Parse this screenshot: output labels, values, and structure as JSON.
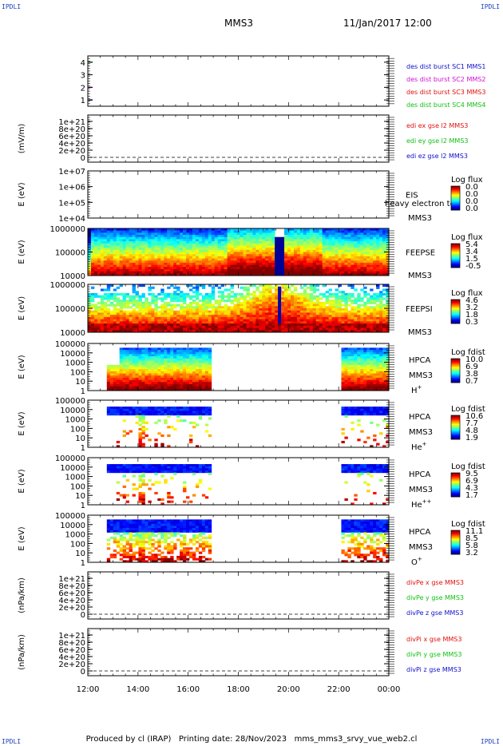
{
  "header": {
    "corner_left_top": "IPDLI",
    "corner_right_top": "IPDLI",
    "corner_left_bottom": "IPDLI",
    "corner_right_bottom": "IPDLI",
    "title": "MMS3",
    "datetime": "11/Jan/2017 12:00"
  },
  "footer": {
    "text": "Produced by cl (IRAP)   Printing date: 28/Nov/2023   mms_mms3_srvy_vue_web2.cl"
  },
  "colors": {
    "blue": "#1010cc",
    "green": "#10c010",
    "red": "#e01010",
    "magenta": "#d010d0"
  },
  "chart_data": [
    {
      "type": "line",
      "panel": "spacecraft-burst",
      "yticks": [
        "1",
        "2",
        "3",
        "4"
      ],
      "ylim": [
        0.5,
        4.5
      ],
      "legend": [
        {
          "text": "des dist burst SC1 MMS1",
          "color": "#1010cc"
        },
        {
          "text": "des dist burst SC2 MMS2",
          "color": "#d010d0"
        },
        {
          "text": "des dist burst SC3 MMS3",
          "color": "#e01010"
        },
        {
          "text": "des dist burst SC4 MMS4",
          "color": "#10c010"
        }
      ],
      "marks": [
        {
          "y": 1,
          "x0": "12:03",
          "x1": "12:11",
          "color": "#1010cc"
        },
        {
          "y": 2,
          "x0": "12:03",
          "x1": "12:11",
          "color": "#d010d0"
        },
        {
          "y": 4,
          "x0": "12:03",
          "x1": "12:11",
          "color": "#10c010"
        }
      ]
    },
    {
      "type": "line",
      "panel": "edi-e-field",
      "ylabel": "(mV/m)",
      "yticks": [
        "0",
        "2e+20",
        "4e+20",
        "6e+20",
        "8e+20",
        "1e+21"
      ],
      "legend": [
        {
          "text": "edi ex gse l2 MMS3",
          "color": "#e01010"
        },
        {
          "text": "edi ey gse l2 MMS3",
          "color": "#10c010"
        },
        {
          "text": "edi ez gse l2 MMS3",
          "color": "#1010cc"
        }
      ],
      "zero_line": true
    },
    {
      "type": "heatmap",
      "panel": "eis",
      "ylabel": "E (eV)",
      "yticks": [
        "1e+04",
        "1e+05",
        "1e+06",
        "1e+07"
      ],
      "instrument": [
        "EIS",
        "MMS3"
      ],
      "overlay_text": "heavy electron to",
      "colorbar": {
        "title": "Log flux",
        "ticks": [
          "0.0",
          "0.0",
          "0.0",
          "0.0"
        ]
      }
    },
    {
      "type": "heatmap",
      "panel": "feepse",
      "ylabel": "E (eV)",
      "yticks": [
        "10000",
        "100000",
        "1000000"
      ],
      "instrument": [
        "FEEPSE",
        "MMS3"
      ],
      "colorbar": {
        "title": "Log flux",
        "ticks": [
          "5.4",
          "3.4",
          "1.5",
          "-0.5"
        ]
      }
    },
    {
      "type": "heatmap",
      "panel": "feepsi",
      "ylabel": "E (eV)",
      "yticks": [
        "10000",
        "100000",
        "1000000"
      ],
      "instrument": [
        "FEEPSI",
        "MMS3"
      ],
      "colorbar": {
        "title": "Log flux",
        "ticks": [
          "4.6",
          "3.2",
          "1.8",
          "0.3"
        ]
      }
    },
    {
      "type": "heatmap",
      "panel": "hpca-h",
      "ylabel": "E (eV)",
      "yticks": [
        "1",
        "10",
        "100",
        "1000",
        "10000",
        "100000"
      ],
      "instrument": [
        "HPCA",
        "MMS3",
        "H",
        "+"
      ],
      "colorbar": {
        "title": "Log fdist",
        "ticks": [
          "10.0",
          "6.9",
          "3.8",
          "0.7"
        ]
      }
    },
    {
      "type": "heatmap",
      "panel": "hpca-he",
      "ylabel": "E (eV)",
      "yticks": [
        "1",
        "10",
        "100",
        "1000",
        "10000",
        "100000"
      ],
      "instrument": [
        "HPCA",
        "MMS3",
        "He",
        "+"
      ],
      "colorbar": {
        "title": "Log fdist",
        "ticks": [
          "10.6",
          "7.7",
          "4.8",
          "1.9"
        ]
      }
    },
    {
      "type": "heatmap",
      "panel": "hpca-hepp",
      "ylabel": "E (eV)",
      "yticks": [
        "1",
        "10",
        "100",
        "1000",
        "10000",
        "100000"
      ],
      "instrument": [
        "HPCA",
        "MMS3",
        "He",
        "++"
      ],
      "colorbar": {
        "title": "Log fdist",
        "ticks": [
          "9.5",
          "6.9",
          "4.3",
          "1.7"
        ]
      }
    },
    {
      "type": "heatmap",
      "panel": "hpca-o",
      "ylabel": "E (eV)",
      "yticks": [
        "1",
        "10",
        "100",
        "1000",
        "10000",
        "100000"
      ],
      "instrument": [
        "HPCA",
        "MMS3",
        "O",
        "+"
      ],
      "colorbar": {
        "title": "Log fdist",
        "ticks": [
          "11.1",
          "8.5",
          "5.8",
          "3.2"
        ]
      }
    },
    {
      "type": "line",
      "panel": "divpe",
      "ylabel": "(nPa/km)",
      "yticks": [
        "0",
        "2e+20",
        "4e+20",
        "6e+20",
        "8e+20",
        "1e+21"
      ],
      "legend": [
        {
          "text": "divPe x gse MMS3",
          "color": "#e01010"
        },
        {
          "text": "divPe y gse MMS3",
          "color": "#10c010"
        },
        {
          "text": "divPe z gse MMS3",
          "color": "#1010cc"
        }
      ],
      "zero_line": true
    },
    {
      "type": "line",
      "panel": "divpi",
      "ylabel": "(nPa/km)",
      "yticks": [
        "0",
        "2e+20",
        "4e+20",
        "6e+20",
        "8e+20",
        "1e+21"
      ],
      "legend": [
        {
          "text": "divPi x gse MMS3",
          "color": "#e01010"
        },
        {
          "text": "divPi y gse MMS3",
          "color": "#10c010"
        },
        {
          "text": "divPi z gse MMS3",
          "color": "#1010cc"
        }
      ],
      "zero_line": true
    }
  ],
  "time_axis": {
    "ticks": [
      "12:00",
      "14:00",
      "16:00",
      "18:00",
      "20:00",
      "22:00",
      "00:00"
    ],
    "range_hours": [
      12,
      24
    ]
  }
}
